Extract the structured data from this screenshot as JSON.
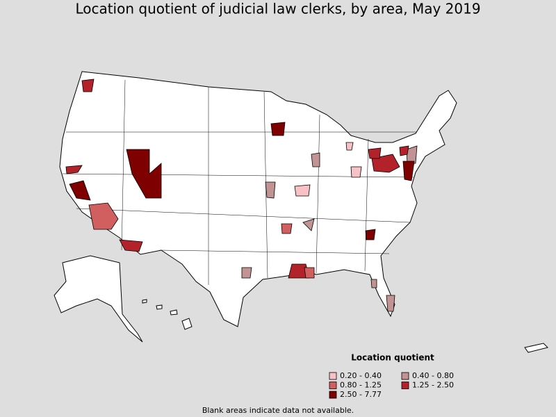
{
  "header": {
    "title": "Location quotient of judicial law clerks, by area, May 2019"
  },
  "legend": {
    "title": "Location quotient",
    "items": [
      {
        "label": "0.20 - 0.40",
        "color": "#f7c1c6"
      },
      {
        "label": "0.40 - 0.80",
        "color": "#c19393"
      },
      {
        "label": "0.80 - 1.25",
        "color": "#d25f5f"
      },
      {
        "label": "1.25 - 2.50",
        "color": "#b3222a"
      },
      {
        "label": "2.50 - 7.77",
        "color": "#7f0000"
      }
    ]
  },
  "footnote": "Blank areas indicate data not available."
}
